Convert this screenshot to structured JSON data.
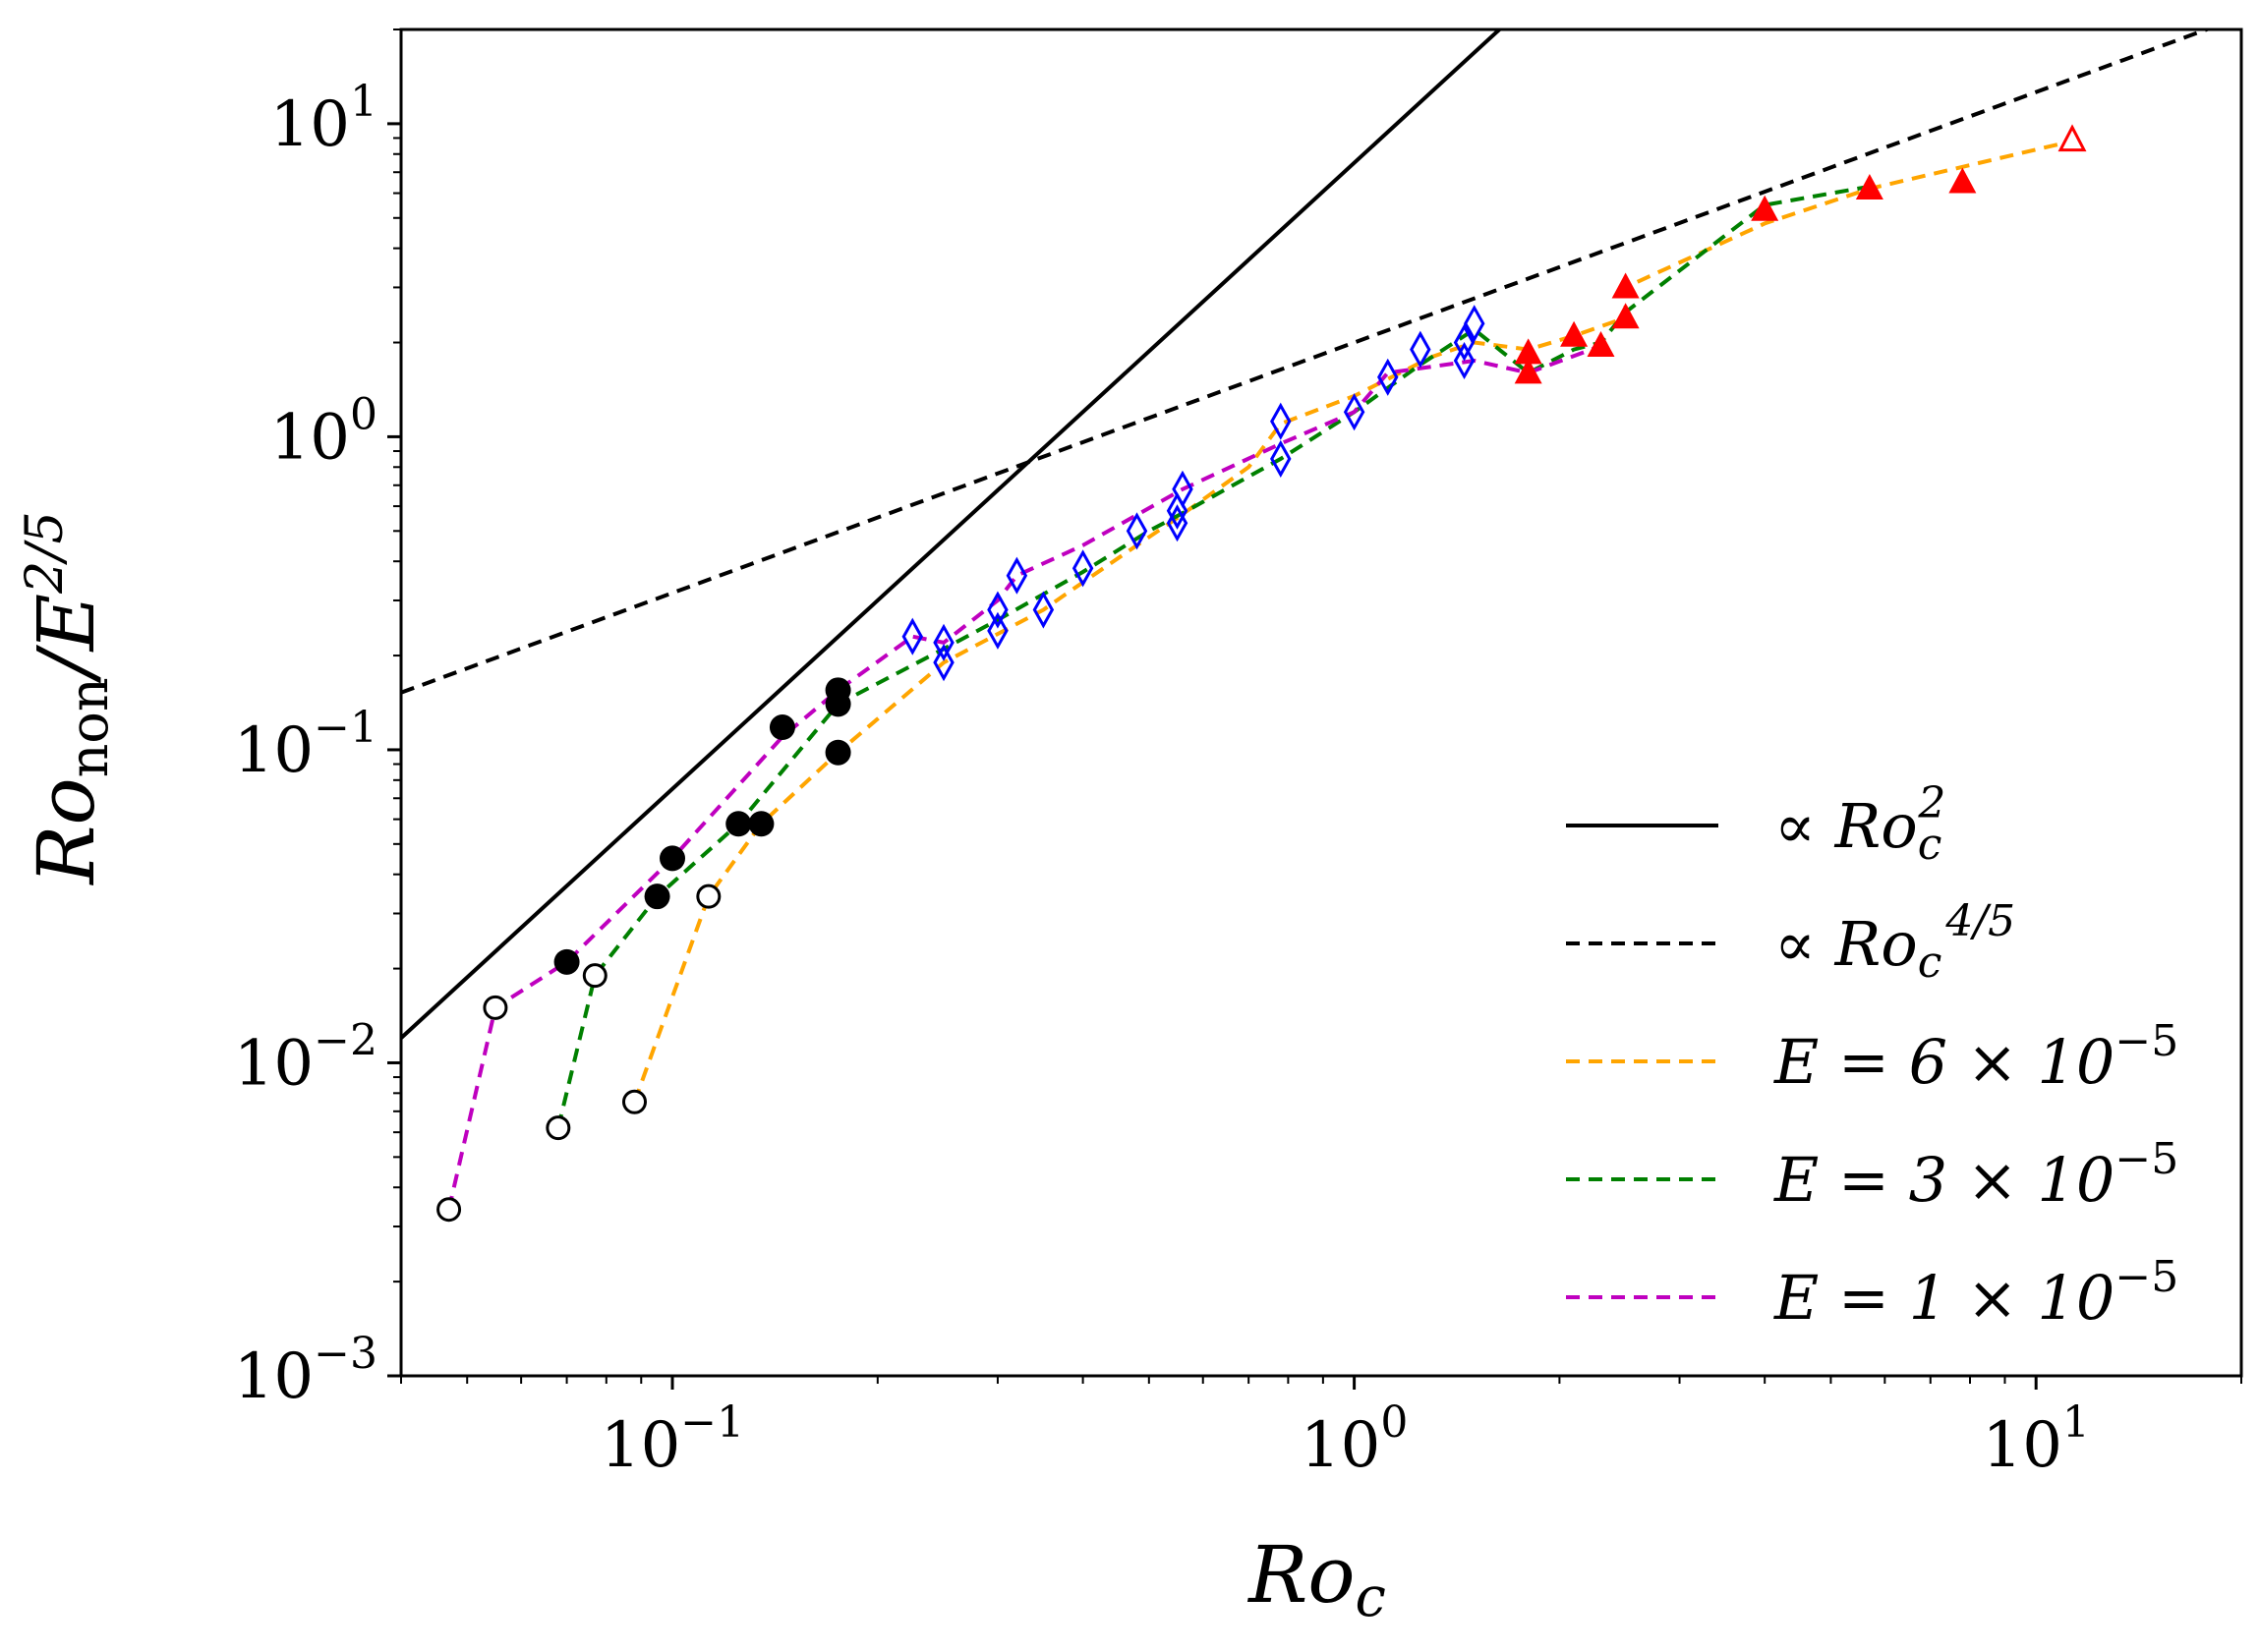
{
  "chart_data": {
    "type": "scatter",
    "title": "",
    "xscale": "log",
    "yscale": "log",
    "xlim": [
      0.04,
      20
    ],
    "ylim": [
      0.001,
      20
    ],
    "xticks": [
      {
        "value": 0.1,
        "base": "10",
        "exp": "−1"
      },
      {
        "value": 1,
        "base": "10",
        "exp": "0"
      },
      {
        "value": 10,
        "base": "10",
        "exp": "1"
      }
    ],
    "yticks": [
      {
        "value": 0.001,
        "base": "10",
        "exp": "−3"
      },
      {
        "value": 0.01,
        "base": "10",
        "exp": "−2"
      },
      {
        "value": 0.1,
        "base": "10",
        "exp": "−1"
      },
      {
        "value": 1,
        "base": "10",
        "exp": "0"
      },
      {
        "value": 10,
        "base": "10",
        "exp": "1"
      }
    ],
    "xlabel": {
      "main": "Ro",
      "sub": "c"
    },
    "ylabel": {
      "main": "Ro",
      "sub": "non",
      "mid": "/E",
      "sup": "2/5"
    },
    "reference_lines": [
      {
        "name": "∝ Ro_c^2",
        "label_prefix": "∝ ",
        "label_main": "Ro",
        "label_sub": "c",
        "label_sup": "2",
        "style": "solid",
        "color": "#000000",
        "coef": 7.5,
        "exponent": 2
      },
      {
        "name": "∝ Ro_c^4/5",
        "label_prefix": "∝ ",
        "label_main": "Ro",
        "label_sub": "c",
        "label_sup": "4/5",
        "style": "dashed",
        "color": "#000000",
        "coef": 2.0,
        "exponent": 0.8
      }
    ],
    "series": [
      {
        "name": "E = 6 × 10^-5",
        "label_main": "E = 6 × 10",
        "label_sup": "−5",
        "color": "#FFA500",
        "style": "dashed",
        "x": [
          0.088,
          0.113,
          0.135,
          0.175,
          0.25,
          0.35,
          0.39,
          0.48,
          0.55,
          0.7,
          0.78,
          1.0,
          1.3,
          1.5,
          1.8,
          2.1,
          2.5,
          2.5,
          4.0,
          5.7,
          11.3
        ],
        "y": [
          0.0075,
          0.034,
          0.058,
          0.098,
          0.19,
          0.28,
          0.33,
          0.45,
          0.55,
          0.8,
          1.1,
          1.35,
          1.8,
          2.0,
          1.9,
          2.1,
          2.4,
          3.0,
          4.8,
          6.2,
          8.8
        ]
      },
      {
        "name": "E = 3 × 10^-5",
        "label_main": "E = 3 × 10",
        "label_sup": "−5",
        "color": "#008000",
        "style": "dashed",
        "x": [
          0.068,
          0.077,
          0.095,
          0.125,
          0.175,
          0.25,
          0.3,
          0.4,
          0.5,
          0.56,
          0.78,
          1.0,
          1.25,
          1.5,
          1.8,
          2.1,
          2.3,
          2.5,
          4.0,
          5.7
        ],
        "y": [
          0.0062,
          0.019,
          0.034,
          0.058,
          0.14,
          0.21,
          0.26,
          0.37,
          0.5,
          0.57,
          0.85,
          1.2,
          1.7,
          2.2,
          1.6,
          1.9,
          2.0,
          2.5,
          5.5,
          6.3
        ]
      },
      {
        "name": "E = 1 × 10^-5",
        "label_main": "E = 1 × 10",
        "label_sup": "−5",
        "color": "#BF00BF",
        "style": "dashed",
        "x": [
          0.047,
          0.055,
          0.07,
          0.1,
          0.145,
          0.175,
          0.225,
          0.25,
          0.3,
          0.32,
          0.4,
          0.56,
          0.78,
          1.0,
          1.12,
          1.5,
          1.8,
          2.3
        ],
        "y": [
          0.0034,
          0.015,
          0.021,
          0.045,
          0.11,
          0.155,
          0.23,
          0.22,
          0.3,
          0.36,
          0.45,
          0.68,
          0.95,
          1.2,
          1.6,
          1.75,
          1.6,
          1.95
        ]
      }
    ],
    "markers": {
      "open_circles": {
        "color": "#000000",
        "x": [
          0.047,
          0.055,
          0.068,
          0.077,
          0.088,
          0.113
        ],
        "y": [
          0.0034,
          0.015,
          0.0062,
          0.019,
          0.0075,
          0.034
        ]
      },
      "filled_circles": {
        "color": "#000000",
        "x": [
          0.07,
          0.095,
          0.1,
          0.125,
          0.135,
          0.145,
          0.175,
          0.175,
          0.175
        ],
        "y": [
          0.021,
          0.034,
          0.045,
          0.058,
          0.058,
          0.118,
          0.155,
          0.14,
          0.098
        ]
      },
      "open_diamonds": {
        "color": "#0000FF",
        "x": [
          0.225,
          0.25,
          0.25,
          0.3,
          0.3,
          0.32,
          0.35,
          0.4,
          0.48,
          0.55,
          0.55,
          0.56,
          0.78,
          0.78,
          1.0,
          1.12,
          1.25,
          1.45,
          1.45,
          1.5
        ],
        "y": [
          0.23,
          0.22,
          0.19,
          0.28,
          0.24,
          0.36,
          0.28,
          0.38,
          0.5,
          0.53,
          0.58,
          0.68,
          1.12,
          0.85,
          1.2,
          1.55,
          1.9,
          1.75,
          2.0,
          2.3
        ]
      },
      "filled_triangles": {
        "color": "#FF0000",
        "x": [
          1.8,
          1.8,
          2.1,
          2.3,
          2.5,
          2.5,
          4.0,
          5.7,
          7.8
        ],
        "y": [
          1.85,
          1.6,
          2.1,
          1.95,
          2.4,
          3.0,
          5.3,
          6.2,
          6.5
        ]
      },
      "open_triangles": {
        "color": "#FF0000",
        "x": [
          11.3
        ],
        "y": [
          8.8
        ]
      }
    },
    "legend": {
      "position": "lower-right"
    }
  }
}
